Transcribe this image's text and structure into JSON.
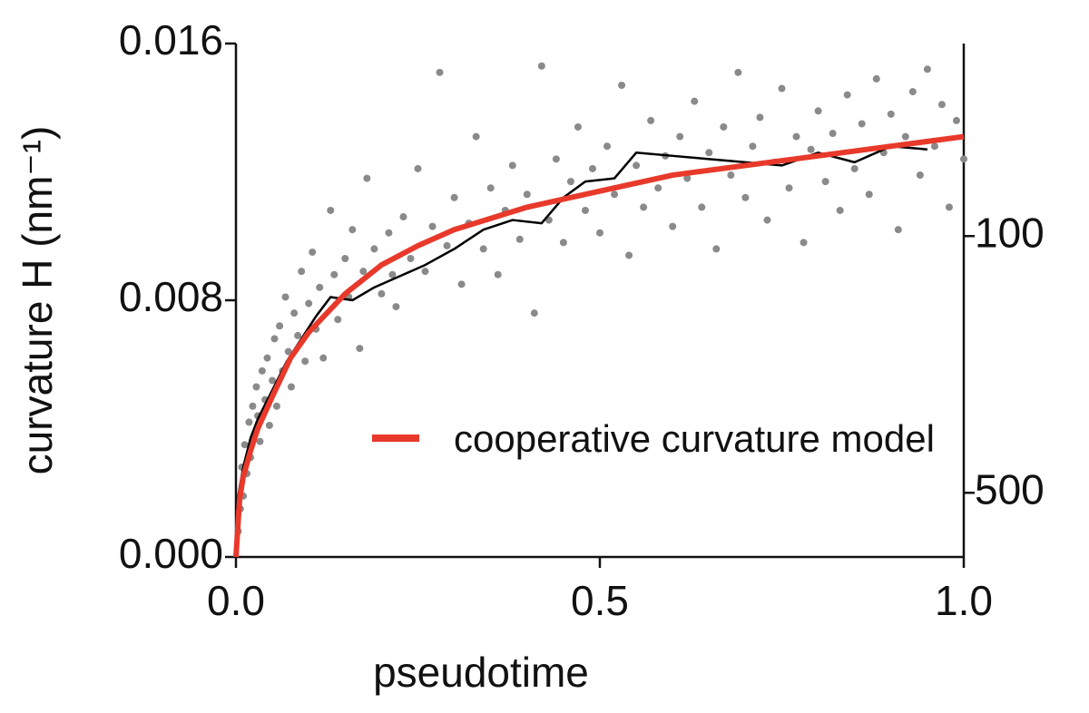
{
  "chart_data": {
    "type": "scatter",
    "xlabel": "pseudotime",
    "ylabel": "curvature H (nm⁻¹)",
    "xlim": [
      0,
      1
    ],
    "xticks": [
      {
        "value": 0,
        "label": "0.0"
      },
      0.5,
      {
        "value": 1,
        "label": "1.0"
      }
    ],
    "ylim": [
      0,
      0.016
    ],
    "yticks": [
      {
        "value": 0,
        "label": "0.000"
      },
      0.008,
      0.016
    ],
    "y2_scale": "reciprocal",
    "y2ticks": [
      100,
      500
    ],
    "points": {
      "color": "#8a8a8a",
      "x": [
        0.003,
        0.006,
        0.008,
        0.01,
        0.012,
        0.015,
        0.018,
        0.02,
        0.023,
        0.025,
        0.028,
        0.03,
        0.033,
        0.036,
        0.04,
        0.043,
        0.046,
        0.05,
        0.053,
        0.056,
        0.06,
        0.064,
        0.068,
        0.072,
        0.076,
        0.08,
        0.085,
        0.09,
        0.095,
        0.1,
        0.105,
        0.11,
        0.115,
        0.12,
        0.13,
        0.135,
        0.14,
        0.15,
        0.155,
        0.16,
        0.17,
        0.175,
        0.18,
        0.19,
        0.2,
        0.21,
        0.215,
        0.22,
        0.23,
        0.24,
        0.25,
        0.26,
        0.27,
        0.28,
        0.29,
        0.3,
        0.31,
        0.32,
        0.33,
        0.34,
        0.35,
        0.36,
        0.37,
        0.38,
        0.39,
        0.4,
        0.41,
        0.42,
        0.43,
        0.44,
        0.45,
        0.46,
        0.47,
        0.48,
        0.49,
        0.5,
        0.51,
        0.52,
        0.53,
        0.54,
        0.55,
        0.56,
        0.57,
        0.58,
        0.59,
        0.6,
        0.61,
        0.62,
        0.63,
        0.64,
        0.65,
        0.66,
        0.67,
        0.68,
        0.69,
        0.7,
        0.71,
        0.72,
        0.73,
        0.74,
        0.75,
        0.76,
        0.77,
        0.78,
        0.79,
        0.8,
        0.81,
        0.82,
        0.83,
        0.84,
        0.85,
        0.86,
        0.87,
        0.88,
        0.89,
        0.9,
        0.91,
        0.92,
        0.93,
        0.94,
        0.95,
        0.96,
        0.97,
        0.98,
        0.99,
        1.0
      ],
      "values": [
        0.0008,
        0.0015,
        0.0028,
        0.0019,
        0.0035,
        0.0026,
        0.0042,
        0.0031,
        0.0047,
        0.0038,
        0.0053,
        0.0044,
        0.0036,
        0.0058,
        0.0049,
        0.0062,
        0.0041,
        0.0055,
        0.0068,
        0.0047,
        0.0072,
        0.0058,
        0.0081,
        0.0064,
        0.0053,
        0.0076,
        0.0069,
        0.0089,
        0.0061,
        0.0079,
        0.0095,
        0.0071,
        0.0084,
        0.0062,
        0.0108,
        0.0088,
        0.0074,
        0.0093,
        0.0081,
        0.0102,
        0.0065,
        0.0089,
        0.0118,
        0.0096,
        0.0082,
        0.0101,
        0.0088,
        0.0078,
        0.0106,
        0.0093,
        0.0121,
        0.0089,
        0.0103,
        0.0151,
        0.0097,
        0.0112,
        0.0085,
        0.0104,
        0.0131,
        0.0096,
        0.0115,
        0.0088,
        0.0108,
        0.0122,
        0.0099,
        0.0113,
        0.0076,
        0.0153,
        0.0105,
        0.0124,
        0.0098,
        0.0117,
        0.0134,
        0.0108,
        0.0121,
        0.0101,
        0.0128,
        0.0113,
        0.0147,
        0.0094,
        0.0122,
        0.0109,
        0.0136,
        0.0115,
        0.0125,
        0.0103,
        0.0131,
        0.0118,
        0.0142,
        0.0109,
        0.0126,
        0.0096,
        0.0134,
        0.0119,
        0.0151,
        0.0112,
        0.0128,
        0.0137,
        0.0105,
        0.0123,
        0.0146,
        0.0115,
        0.0131,
        0.0098,
        0.0127,
        0.0139,
        0.0117,
        0.0132,
        0.0108,
        0.0144,
        0.0121,
        0.0135,
        0.0113,
        0.0149,
        0.0126,
        0.0138,
        0.0102,
        0.0131,
        0.0145,
        0.0119,
        0.0152,
        0.0128,
        0.0141,
        0.0109,
        0.0136,
        0.0124
      ]
    },
    "series": [
      {
        "color": "#000000",
        "x": [
          0.0,
          0.01,
          0.02,
          0.03,
          0.05,
          0.07,
          0.09,
          0.11,
          0.13,
          0.16,
          0.19,
          0.22,
          0.26,
          0.3,
          0.34,
          0.38,
          0.42,
          0.45,
          0.48,
          0.52,
          0.55,
          0.6,
          0.65,
          0.7,
          0.75,
          0.8,
          0.85,
          0.9,
          0.95
        ],
        "values": [
          0.0015,
          0.0028,
          0.0037,
          0.0043,
          0.0052,
          0.0061,
          0.0068,
          0.0075,
          0.0081,
          0.008,
          0.0084,
          0.0087,
          0.0091,
          0.0096,
          0.0102,
          0.0105,
          0.0104,
          0.0112,
          0.0117,
          0.0118,
          0.0126,
          0.0125,
          0.0124,
          0.0123,
          0.0122,
          0.0126,
          0.0123,
          0.0128,
          0.0127
        ]
      },
      {
        "name": "cooperative curvature model",
        "color": "#e8392b",
        "x": [
          0,
          0.005,
          0.01,
          0.02,
          0.03,
          0.05,
          0.075,
          0.1,
          0.15,
          0.2,
          0.25,
          0.3,
          0.4,
          0.5,
          0.6,
          0.7,
          0.8,
          0.9,
          1.0
        ],
        "values": [
          0,
          0.0018,
          0.0025,
          0.0033,
          0.004,
          0.005,
          0.0062,
          0.007,
          0.0082,
          0.0091,
          0.0097,
          0.0102,
          0.0109,
          0.0114,
          0.0119,
          0.0122,
          0.0125,
          0.0128,
          0.0131
        ]
      }
    ],
    "legend": "lower right"
  }
}
